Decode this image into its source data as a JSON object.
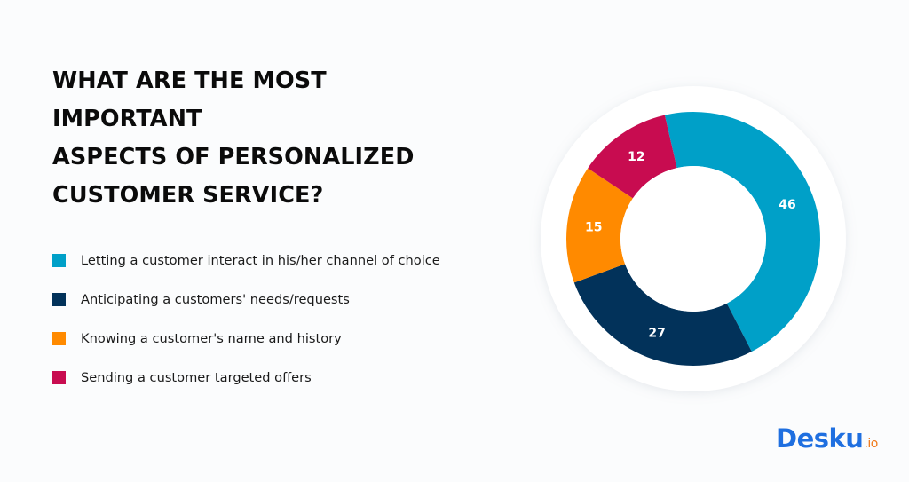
{
  "title": "WHAT ARE THE MOST IMPORTANT ASPECTS OF PERSONALIZED CUSTOMER SERVICE?",
  "title_lines": [
    "WHAT ARE THE MOST IMPORTANT",
    "ASPECTS OF PERSONALIZED",
    "CUSTOMER SERVICE?"
  ],
  "legend": [
    {
      "label": "Letting a customer interact in his/her channel of choice",
      "color": "#00a0c8"
    },
    {
      "label": "Anticipating a customers' needs/requests",
      "color": "#02325a"
    },
    {
      "label": "Knowing a customer's name and history",
      "color": "#ff8a00"
    },
    {
      "label": "Sending a customer targeted offers",
      "color": "#c80c50"
    }
  ],
  "logo": {
    "name": "Desku",
    "tld": ".io"
  },
  "chart_data": {
    "type": "pie",
    "variant": "donut",
    "title": "WHAT ARE THE MOST IMPORTANT ASPECTS OF PERSONALIZED CUSTOMER SERVICE?",
    "categories": [
      "Letting a customer interact in his/her channel of choice",
      "Anticipating a customers' needs/requests",
      "Knowing a customer's name and history",
      "Sending a customer targeted offers"
    ],
    "values": [
      46,
      27,
      15,
      12
    ],
    "data_labels": [
      "46",
      "27",
      "15",
      "12"
    ],
    "colors": [
      "#00a0c8",
      "#02325a",
      "#ff8a00",
      "#c80c50"
    ],
    "legend_position": "left",
    "start_angle_deg": -13,
    "direction": "clockwise"
  }
}
